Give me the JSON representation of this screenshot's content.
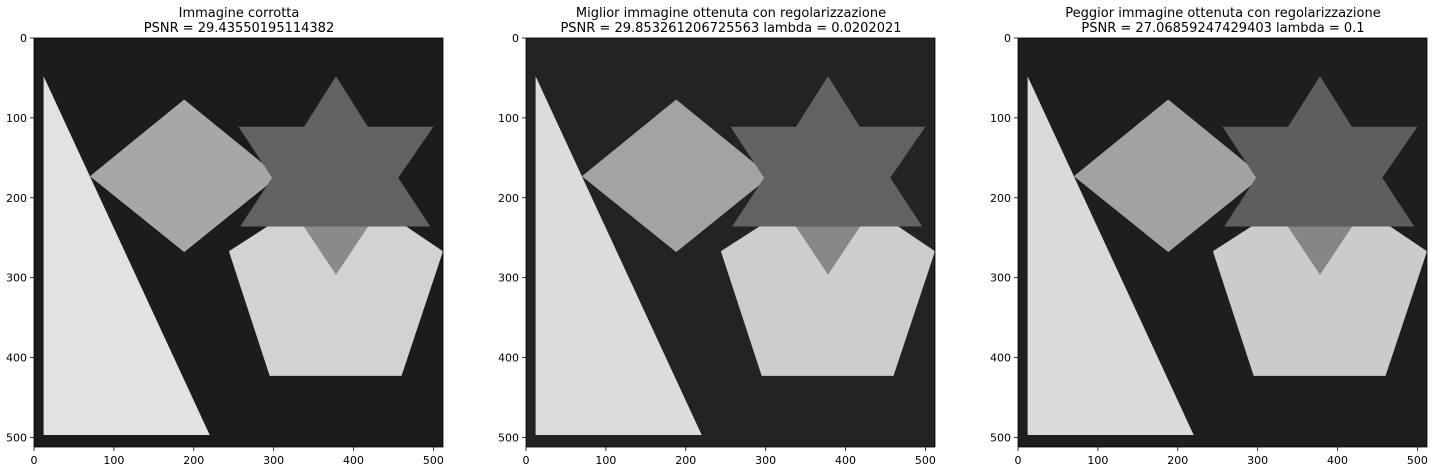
{
  "chart_data": [
    {
      "type": "image",
      "title_lines": [
        "Immagine corrotta",
        "PSNR = 29.43550195114382"
      ],
      "xticks": [
        0,
        100,
        200,
        300,
        400,
        500
      ],
      "yticks": [
        0,
        100,
        200,
        300,
        400,
        500
      ],
      "xlim": [
        0,
        512
      ],
      "ylim": [
        512,
        0
      ],
      "background_color": "#1c1c1c",
      "shape_colors": {
        "triangle": "#e2e2e2",
        "diamond": "#a7a7a7",
        "star": "#626262",
        "pentagon": "#d2d2d2",
        "overlap": "#8a8a8a"
      }
    },
    {
      "type": "image",
      "title_lines": [
        "Miglior immagine ottenuta con regolarizzazione",
        "PSNR = 29.853261206725563 lambda = 0.0202021"
      ],
      "xticks": [
        0,
        100,
        200,
        300,
        400,
        500
      ],
      "yticks": [
        0,
        100,
        200,
        300,
        400,
        500
      ],
      "xlim": [
        0,
        512
      ],
      "ylim": [
        512,
        0
      ],
      "background_color": "#232323",
      "shape_colors": {
        "triangle": "#dcdcdc",
        "diamond": "#a3a3a3",
        "star": "#626262",
        "pentagon": "#cdcdcd",
        "overlap": "#878787"
      }
    },
    {
      "type": "image",
      "title_lines": [
        "Peggior immagine ottenuta con regolarizzazione",
        "PSNR = 27.06859247429403 lambda = 0.1"
      ],
      "xticks": [
        0,
        100,
        200,
        300,
        400,
        500
      ],
      "yticks": [
        0,
        100,
        200,
        300,
        400,
        500
      ],
      "xlim": [
        0,
        512
      ],
      "ylim": [
        512,
        0
      ],
      "background_color": "#1e1e1e",
      "shape_colors": {
        "triangle": "#dadada",
        "diamond": "#a2a2a2",
        "star": "#5e5e5e",
        "pentagon": "#cbcbcb",
        "overlap": "#858585"
      }
    }
  ]
}
